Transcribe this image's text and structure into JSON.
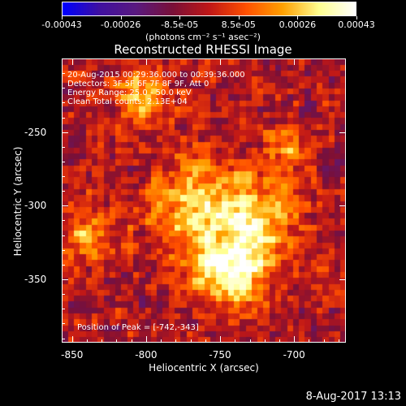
{
  "colorbar": {
    "ticks": [
      "-0.00043",
      "-0.00026",
      "-8.5e-05",
      "8.5e-05",
      "0.00026",
      "0.00043"
    ],
    "unit": "(photons cm⁻² s⁻¹ asec⁻²)",
    "colors": [
      "#0000ff",
      "#4010a0",
      "#5a1a80",
      "#7a1038",
      "#c01818",
      "#ff5000",
      "#ffa000",
      "#ffff90",
      "#ffffff"
    ]
  },
  "chart_data": {
    "type": "heatmap",
    "title": "Reconstructed RHESSI Image",
    "xlabel": "Heliocentric X (arcsec)",
    "ylabel": "Heliocentric Y (arcsec)",
    "xlim": [
      -857,
      -665
    ],
    "ylim": [
      -393,
      -200
    ],
    "xticks": [
      "-850",
      "-800",
      "-750",
      "-700"
    ],
    "xtick_values": [
      -850,
      -800,
      -750,
      -700
    ],
    "yticks": [
      "-250",
      "-300",
      "-350"
    ],
    "ytick_values": [
      -250,
      -300,
      -350
    ],
    "vmin": -0.00043,
    "vmax": 0.00043,
    "peak": [
      -742,
      -343
    ],
    "sources": [
      {
        "x": -742,
        "y": -343,
        "amp": 0.00043,
        "sigma": 18
      },
      {
        "x": -765,
        "y": -300,
        "amp": 0.00032,
        "sigma": 22
      },
      {
        "x": -720,
        "y": -305,
        "amp": 0.00026,
        "sigma": 18
      },
      {
        "x": -805,
        "y": -225,
        "amp": 0.0003,
        "sigma": 12
      },
      {
        "x": -840,
        "y": -320,
        "amp": 0.00022,
        "sigma": 12
      },
      {
        "x": -705,
        "y": -262,
        "amp": 0.0002,
        "sigma": 11
      }
    ],
    "annotations": [
      "20-Aug-2015 00:29:36.000 to 00:39:36.000",
      "Detectors: 3F 5F 6F 7F 8F 9F, Att 0",
      "Energy Range: 25.0 - 50.0 keV",
      "Clean     Total counts: 2.13E+04"
    ],
    "peak_label": "Position of Peak = [-742,-343]"
  },
  "timestamp": "8-Aug-2017 13:13"
}
